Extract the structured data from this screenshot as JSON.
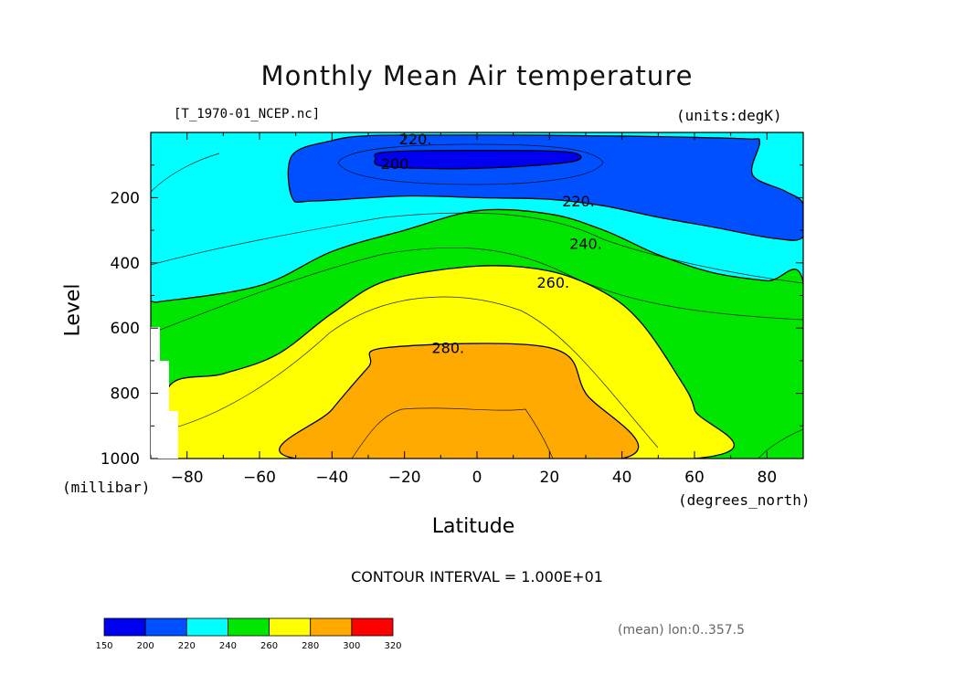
{
  "title": "Monthly Mean Air temperature",
  "filename": "[T_1970-01_NCEP.nc]",
  "units_note": "(units:degK)",
  "ylabel": "Level",
  "ylabel_units": "(millibar)",
  "xlabel": "Latitude",
  "xlabel_units": "(degrees_north)",
  "contour_interval": "CONTOUR INTERVAL = 1.000E+01",
  "mean_info": "(mean) lon:0..357.5",
  "colorbar": {
    "levels": [
      150,
      200,
      220,
      240,
      260,
      280,
      300,
      320
    ],
    "colors": [
      "#0000f0",
      "#0050ff",
      "#00ffff",
      "#00e600",
      "#ffff00",
      "#ffaa00",
      "#ff0000"
    ]
  },
  "chart_data": {
    "type": "heatmap",
    "title": "Monthly Mean Air temperature",
    "xlabel": "Latitude",
    "ylabel": "Level",
    "xlim": [
      -90,
      90
    ],
    "ylim": [
      1000,
      0
    ],
    "x_ticks": [
      -80,
      -60,
      -40,
      -20,
      0,
      20,
      40,
      60,
      80
    ],
    "x_tick_labels": [
      "-80",
      "-60",
      "-40",
      "-20",
      "0",
      "20",
      "40",
      "60",
      "80"
    ],
    "y_ticks": [
      200,
      400,
      600,
      800,
      1000
    ],
    "y_tick_labels": [
      "200",
      "400",
      "600",
      "800",
      "1000"
    ],
    "contour_labels": [
      {
        "text": "220.",
        "lat": -17,
        "level": 20
      },
      {
        "text": "200.",
        "lat": -22,
        "level": 95
      },
      {
        "text": "220.",
        "lat": 28,
        "level": 210
      },
      {
        "text": "240.",
        "lat": 30,
        "level": 340
      },
      {
        "text": "260.",
        "lat": 21,
        "level": 460
      },
      {
        "text": "280.",
        "lat": -8,
        "level": 660
      }
    ],
    "filled_regions": [
      {
        "range": "200-220",
        "color": "#0050ff",
        "boundary": [
          [
            -51,
            200
          ],
          [
            -51,
            70
          ],
          [
            -40,
            25
          ],
          [
            -30,
            10
          ],
          [
            -10,
            8
          ],
          [
            10,
            8
          ],
          [
            30,
            10
          ],
          [
            45,
            12
          ],
          [
            60,
            15
          ],
          [
            75,
            20
          ],
          [
            78,
            30
          ],
          [
            76,
            130
          ],
          [
            85,
            180
          ],
          [
            90,
            220
          ],
          [
            90,
            320
          ],
          [
            82,
            325
          ],
          [
            65,
            290
          ],
          [
            50,
            260
          ],
          [
            35,
            225
          ],
          [
            20,
            205
          ],
          [
            0,
            200
          ],
          [
            -20,
            195
          ],
          [
            -45,
            210
          ]
        ]
      },
      {
        "range": "150-200",
        "color": "#0000f0",
        "boundary": [
          [
            -25,
            60
          ],
          [
            0,
            55
          ],
          [
            25,
            60
          ],
          [
            26,
            90
          ],
          [
            0,
            110
          ],
          [
            -25,
            105
          ],
          [
            -28,
            80
          ]
        ]
      },
      {
        "range": "240-260",
        "color": "#00e600",
        "boundary": [
          [
            -88,
            520
          ],
          [
            -60,
            470
          ],
          [
            -40,
            365
          ],
          [
            -20,
            300
          ],
          [
            0,
            240
          ],
          [
            20,
            250
          ],
          [
            35,
            300
          ],
          [
            50,
            375
          ],
          [
            65,
            430
          ],
          [
            80,
            455
          ],
          [
            90,
            460
          ],
          [
            90,
            1000
          ],
          [
            -90,
            1000
          ],
          [
            -90,
            520
          ]
        ]
      },
      {
        "range": "260-280",
        "color": "#ffff00",
        "boundary": [
          [
            -85,
            780
          ],
          [
            -70,
            740
          ],
          [
            -55,
            680
          ],
          [
            -40,
            555
          ],
          [
            -25,
            455
          ],
          [
            0,
            410
          ],
          [
            20,
            425
          ],
          [
            35,
            490
          ],
          [
            45,
            580
          ],
          [
            55,
            740
          ],
          [
            60,
            850
          ],
          [
            60,
            1000
          ],
          [
            -85,
            1000
          ]
        ]
      },
      {
        "range": "280-300",
        "color": "#ffaa00",
        "boundary": [
          [
            -50,
            1000
          ],
          [
            -40,
            850
          ],
          [
            -30,
            720
          ],
          [
            -25,
            660
          ],
          [
            20,
            660
          ],
          [
            30,
            800
          ],
          [
            40,
            1000
          ]
        ]
      }
    ]
  }
}
